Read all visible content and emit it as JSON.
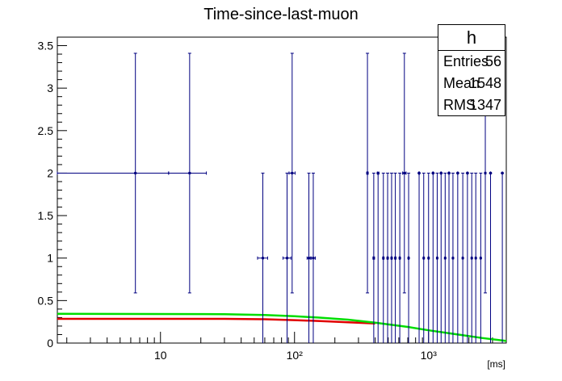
{
  "chart_data": {
    "type": "scatter",
    "title": "Time-since-last-muon",
    "xlabel": "[ms]",
    "ylabel": "",
    "xscale": "log",
    "xlim": [
      1.7,
      3800
    ],
    "ylim": [
      0,
      3.6
    ],
    "yticks": [
      0,
      0.5,
      1,
      1.5,
      2,
      2.5,
      3,
      3.5
    ],
    "ytick_labels": [
      "0",
      "0.5",
      "1",
      "1.5",
      "2",
      "2.5",
      "3",
      "3.5"
    ],
    "xtick_labels": [
      "10",
      "10²",
      "10³"
    ],
    "xtick_values": [
      10,
      100,
      1000
    ],
    "grid": false,
    "colors": {
      "points": "#000080",
      "fit_red": "#e00000",
      "fit_green": "#00dd00",
      "axis": "#000000"
    },
    "points": [
      {
        "x": 6.5,
        "y": 2,
        "xlo": 1.7,
        "xhi": 11.5,
        "ylo": 0.59,
        "yhi": 3.41
      },
      {
        "x": 16.5,
        "y": 2,
        "xlo": 11.5,
        "xhi": 22,
        "ylo": 0.59,
        "yhi": 3.41
      },
      {
        "x": 58,
        "y": 1,
        "xlo": 53,
        "xhi": 63,
        "ylo": 0,
        "yhi": 2
      },
      {
        "x": 88,
        "y": 1,
        "xlo": 82,
        "xhi": 94,
        "ylo": 0,
        "yhi": 2
      },
      {
        "x": 96,
        "y": 2,
        "xlo": 91,
        "xhi": 101,
        "ylo": 0.59,
        "yhi": 3.41
      },
      {
        "x": 128,
        "y": 1,
        "xlo": 124,
        "xhi": 132,
        "ylo": 0,
        "yhi": 2
      },
      {
        "x": 138,
        "y": 1,
        "xlo": 133,
        "xhi": 143,
        "ylo": 0,
        "yhi": 2
      },
      {
        "x": 350,
        "y": 2,
        "xlo": 346,
        "xhi": 354,
        "ylo": 0.59,
        "yhi": 3.41
      },
      {
        "x": 390,
        "y": 1,
        "xlo": 385,
        "xhi": 395,
        "ylo": 0,
        "yhi": 2
      },
      {
        "x": 420,
        "y": 2,
        "xlo": 415,
        "xhi": 425,
        "ylo": 0,
        "yhi": 2
      },
      {
        "x": 460,
        "y": 1,
        "xlo": 455,
        "xhi": 465,
        "ylo": 0,
        "yhi": 2
      },
      {
        "x": 495,
        "y": 1,
        "xlo": 490,
        "xhi": 500,
        "ylo": 0,
        "yhi": 2
      },
      {
        "x": 530,
        "y": 1,
        "xlo": 525,
        "xhi": 535,
        "ylo": 0,
        "yhi": 2
      },
      {
        "x": 565,
        "y": 1,
        "xlo": 560,
        "xhi": 570,
        "ylo": 0,
        "yhi": 2
      },
      {
        "x": 610,
        "y": 1,
        "xlo": 605,
        "xhi": 615,
        "ylo": 0,
        "yhi": 2
      },
      {
        "x": 660,
        "y": 2,
        "xlo": 640,
        "xhi": 680,
        "ylo": 0.59,
        "yhi": 3.41
      },
      {
        "x": 710,
        "y": 1,
        "xlo": 705,
        "xhi": 715,
        "ylo": 0,
        "yhi": 2
      },
      {
        "x": 850,
        "y": 2,
        "xlo": 845,
        "xhi": 855,
        "ylo": 0,
        "yhi": 2
      },
      {
        "x": 920,
        "y": 1,
        "xlo": 915,
        "xhi": 925,
        "ylo": 0,
        "yhi": 2
      },
      {
        "x": 1000,
        "y": 1,
        "xlo": 995,
        "xhi": 1005,
        "ylo": 0,
        "yhi": 2
      },
      {
        "x": 1080,
        "y": 2,
        "xlo": 1075,
        "xhi": 1085,
        "ylo": 0,
        "yhi": 2
      },
      {
        "x": 1160,
        "y": 1,
        "xlo": 1155,
        "xhi": 1165,
        "ylo": 0,
        "yhi": 2
      },
      {
        "x": 1240,
        "y": 2,
        "xlo": 1235,
        "xhi": 1245,
        "ylo": 0,
        "yhi": 2
      },
      {
        "x": 1330,
        "y": 1,
        "xlo": 1325,
        "xhi": 1335,
        "ylo": 0,
        "yhi": 2
      },
      {
        "x": 1420,
        "y": 2,
        "xlo": 1415,
        "xhi": 1425,
        "ylo": 0,
        "yhi": 2
      },
      {
        "x": 1520,
        "y": 1,
        "xlo": 1515,
        "xhi": 1525,
        "ylo": 0,
        "yhi": 2
      },
      {
        "x": 1650,
        "y": 2,
        "xlo": 1645,
        "xhi": 1655,
        "ylo": 0,
        "yhi": 2
      },
      {
        "x": 1800,
        "y": 1,
        "xlo": 1795,
        "xhi": 1805,
        "ylo": 0,
        "yhi": 2
      },
      {
        "x": 1950,
        "y": 2,
        "xlo": 1945,
        "xhi": 1955,
        "ylo": 0,
        "yhi": 2
      },
      {
        "x": 2100,
        "y": 1,
        "xlo": 2095,
        "xhi": 2105,
        "ylo": 0,
        "yhi": 2
      },
      {
        "x": 2250,
        "y": 1,
        "xlo": 2245,
        "xhi": 2255,
        "ylo": 0,
        "yhi": 2
      },
      {
        "x": 2450,
        "y": 1,
        "xlo": 2445,
        "xhi": 2455,
        "ylo": 0,
        "yhi": 2
      },
      {
        "x": 2650,
        "y": 2,
        "xlo": 2645,
        "xhi": 2655,
        "ylo": 0.59,
        "yhi": 3.41
      },
      {
        "x": 2900,
        "y": 2,
        "xlo": 2895,
        "xhi": 2905,
        "ylo": 0,
        "yhi": 2
      },
      {
        "x": 3550,
        "y": 2,
        "xlo": 3545,
        "xhi": 3555,
        "ylo": 0,
        "yhi": 2
      }
    ],
    "fit_red": {
      "x": [
        1.7,
        30,
        60,
        100,
        150,
        250,
        400
      ],
      "y": [
        0.285,
        0.285,
        0.28,
        0.27,
        0.26,
        0.245,
        0.23
      ]
    },
    "fit_green": {
      "x": [
        1.7,
        30,
        60,
        100,
        150,
        250,
        400,
        700,
        1000,
        1500,
        2500,
        3800
      ],
      "y": [
        0.345,
        0.34,
        0.33,
        0.315,
        0.3,
        0.275,
        0.24,
        0.19,
        0.15,
        0.11,
        0.06,
        0.025
      ]
    }
  },
  "stats_box": {
    "name": "h",
    "rows": [
      {
        "label": "Entries",
        "value": "56"
      },
      {
        "label": "Mean",
        "value": "1548"
      },
      {
        "label": "RMS",
        "value": "1347"
      }
    ]
  }
}
